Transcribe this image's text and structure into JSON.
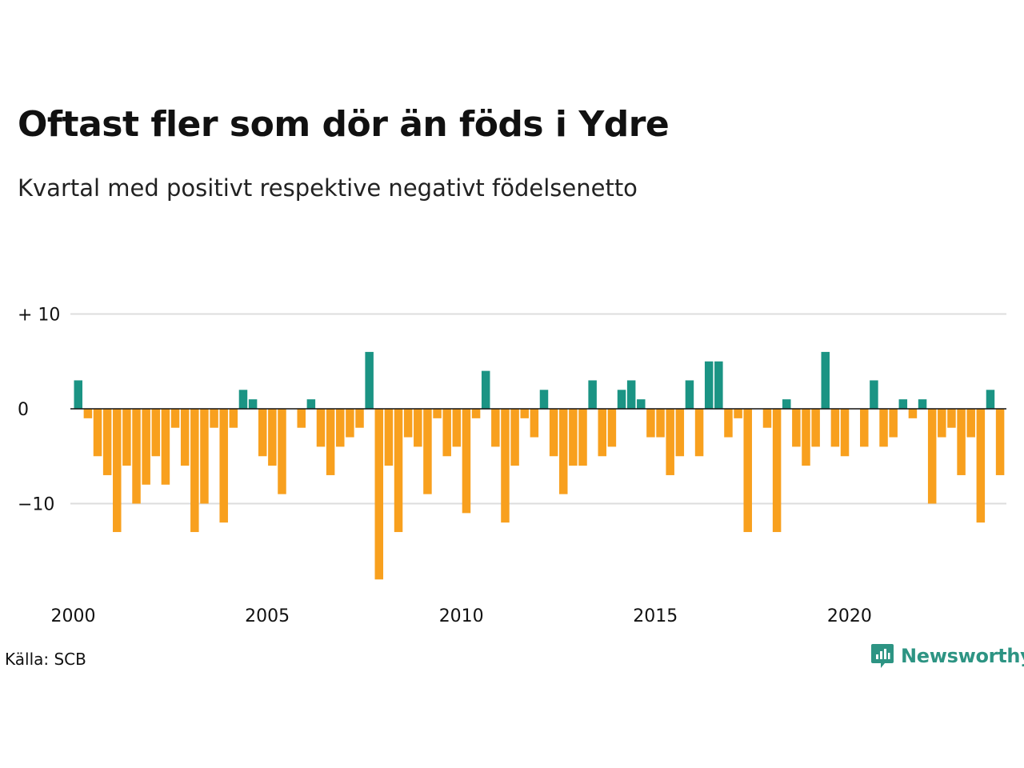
{
  "title": "Oftast fler som dör än föds i Ydre",
  "subtitle": "Kvartal med positivt respektive negativt födelsenetto",
  "source": "Källa: SCB",
  "brand": {
    "name": "Newsworthy",
    "icon": "newsworthy-logo-icon",
    "color": "#2d9483"
  },
  "chart_data": {
    "type": "bar",
    "title": "Oftast fler som dör än föds i Ydre",
    "subtitle": "Kvartal med positivt respektive negativt födelsenetto",
    "xlabel": "",
    "ylabel": "",
    "x_start_year": 2000,
    "periods_per_year": 4,
    "x_ticks": [
      {
        "year": 2000,
        "label": "2000"
      },
      {
        "year": 2005,
        "label": "2005"
      },
      {
        "year": 2010,
        "label": "2010"
      },
      {
        "year": 2015,
        "label": "2015"
      },
      {
        "year": 2020,
        "label": "2020"
      }
    ],
    "y_ticks": [
      {
        "value": 10,
        "label": "+ 10"
      },
      {
        "value": 0,
        "label": "0"
      },
      {
        "value": -10,
        "label": "−10"
      }
    ],
    "ylim": [
      -18,
      10
    ],
    "grid": true,
    "colors": {
      "positive": "#1b9484",
      "negative": "#f8a01e",
      "grid": "#dddddd",
      "zero": "#111111"
    },
    "values": [
      3,
      -1,
      -5,
      -7,
      -13,
      -6,
      -10,
      -8,
      -5,
      -8,
      -2,
      -6,
      -13,
      -10,
      -2,
      -12,
      -2,
      2,
      1,
      -5,
      -6,
      -9,
      0,
      -2,
      1,
      -4,
      -7,
      -4,
      -3,
      -2,
      6,
      -18,
      -6,
      -13,
      -3,
      -4,
      -9,
      -1,
      -5,
      -4,
      -11,
      -1,
      4,
      -4,
      -12,
      -6,
      -1,
      -3,
      2,
      -5,
      -9,
      -6,
      -6,
      3,
      -5,
      -4,
      2,
      3,
      1,
      -3,
      -3,
      -7,
      -5,
      3,
      -5,
      5,
      5,
      -3,
      -1,
      -13,
      0,
      -2,
      -13,
      1,
      -4,
      -6,
      -4,
      6,
      -4,
      -5,
      0,
      -4,
      3,
      -4,
      -3,
      1,
      -1,
      1,
      -10,
      -3,
      -2,
      -7,
      -3,
      -12,
      2,
      -7
    ]
  }
}
